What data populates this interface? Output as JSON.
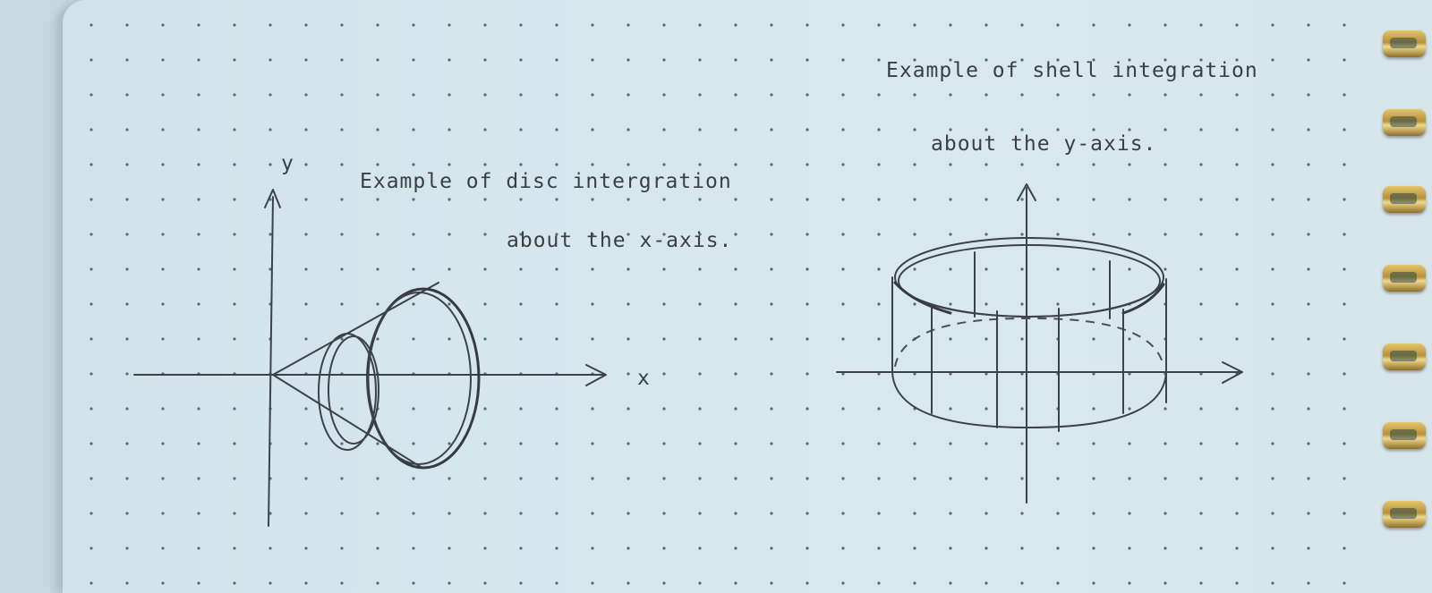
{
  "left_diagram": {
    "caption_line1": "Example of disc intergration",
    "caption_line2": "about the x-axis.",
    "y_axis_label": "y",
    "x_axis_label": "x"
  },
  "right_diagram": {
    "caption_line1": "Example of shell integration",
    "caption_line2": "about the y-axis."
  },
  "colors": {
    "paper": "#d7e7ee",
    "pencil": "#3c4247",
    "ring_gold": "#c9a54b"
  }
}
